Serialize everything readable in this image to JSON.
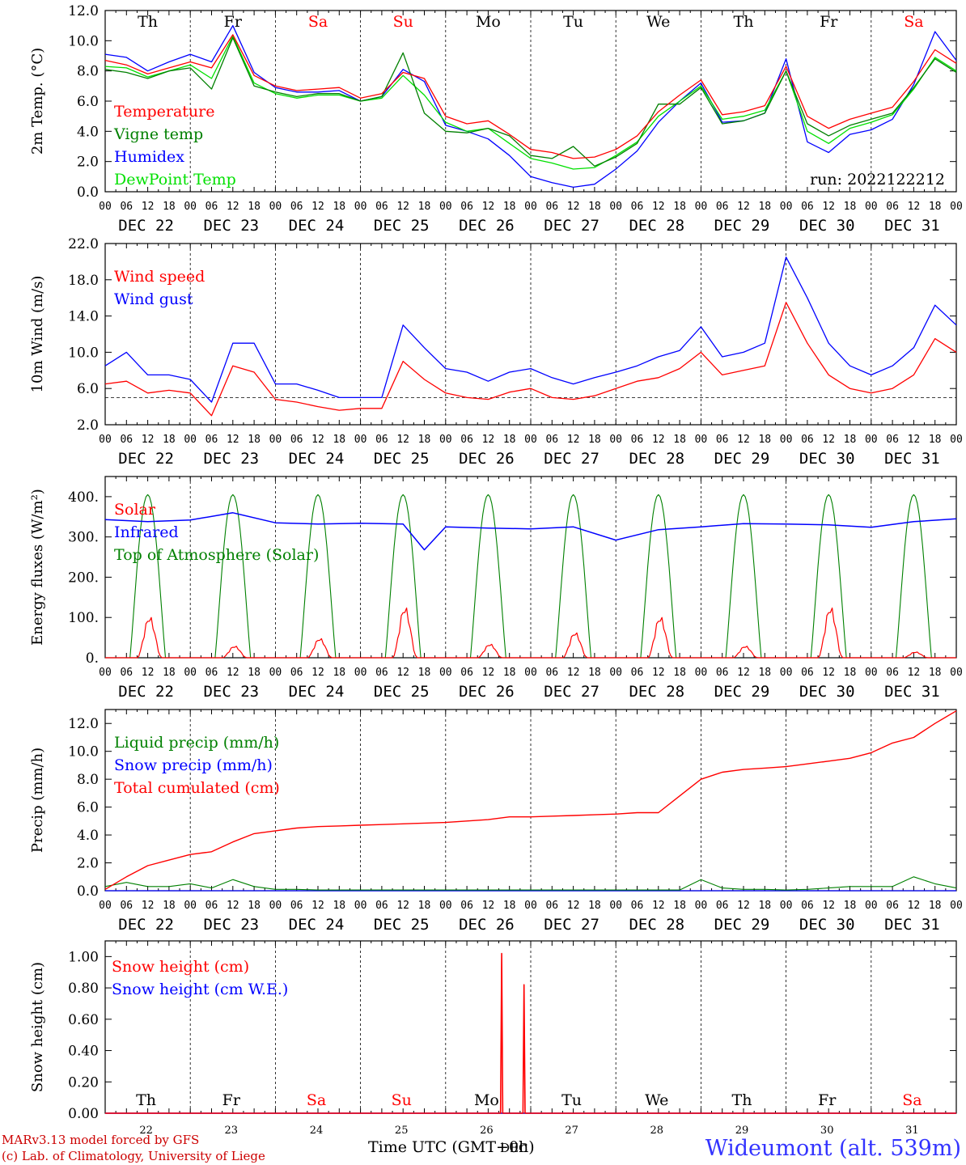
{
  "colors": {
    "temperature": "#ff0000",
    "vigne": "#008000",
    "humidex": "#0000ff",
    "dewpoint": "#00e000",
    "weekend": "#ff0000",
    "weekday": "#000000",
    "footer_station": "#3333ff",
    "footer_credit": "#cc0000"
  },
  "days": [
    "Th",
    "Fr",
    "Sa",
    "Su",
    "Mo",
    "Tu",
    "We",
    "Th",
    "Fr",
    "Sa"
  ],
  "weekend": [
    false,
    false,
    true,
    true,
    false,
    false,
    false,
    false,
    false,
    true
  ],
  "dates": [
    "DEC 22",
    "DEC 23",
    "DEC 24",
    "DEC 25",
    "DEC 26",
    "DEC 27",
    "DEC 28",
    "DEC 29",
    "DEC 30",
    "DEC 31"
  ],
  "hour_ticks": [
    "00",
    "06",
    "12",
    "18"
  ],
  "last_hour_tick": "00",
  "bottom_day_numbers": [
    "22",
    "23",
    "24",
    "25",
    "26",
    "27",
    "28",
    "29",
    "30",
    "31"
  ],
  "footer": {
    "xlabel": "Time UTC (GMT+0h)",
    "xlabel_overlay": "DEC",
    "model": "MARv3.13 model forced by GFS",
    "lab": "(c) Lab. of Climatology, University of Liege",
    "station": "Wideumont (alt. 539m)"
  },
  "chart_data": [
    {
      "type": "line",
      "ylabel": "2m Temp. (°C)",
      "ylim": [
        0,
        12
      ],
      "ytick_labels": [
        "0.0",
        "2.0",
        "4.0",
        "6.0",
        "8.0",
        "10.0",
        "12.0"
      ],
      "run_label": "run: 2022122212",
      "legend": [
        "Temperature",
        "Vigne temp",
        "Humidex",
        "DewPoint Temp"
      ],
      "x_hours": [
        0,
        6,
        12,
        18,
        24,
        30,
        36,
        42,
        48,
        54,
        60,
        66,
        72,
        78,
        84,
        90,
        96,
        102,
        108,
        114,
        120,
        126,
        132,
        138,
        144,
        150,
        156,
        162,
        168,
        174,
        180,
        186,
        192,
        198,
        204,
        210,
        216,
        222,
        228,
        234,
        240
      ],
      "series": [
        {
          "name": "Temperature",
          "values": [
            8.7,
            8.4,
            7.8,
            8.2,
            8.6,
            8.2,
            10.4,
            7.7,
            7.0,
            6.7,
            6.8,
            6.9,
            6.2,
            6.5,
            7.9,
            7.5,
            5.0,
            4.5,
            4.7,
            3.8,
            2.8,
            2.6,
            2.2,
            2.3,
            2.8,
            3.7,
            5.3,
            6.4,
            7.4,
            5.1,
            5.3,
            5.7,
            8.3,
            5.0,
            4.2,
            4.8,
            5.2,
            5.6,
            7.3,
            9.4,
            8.5
          ]
        },
        {
          "name": "Vigne temp",
          "values": [
            8.1,
            7.9,
            7.5,
            8.0,
            8.2,
            6.8,
            10.2,
            7.0,
            6.6,
            6.3,
            6.5,
            6.5,
            6.0,
            6.3,
            9.2,
            5.2,
            4.0,
            3.9,
            4.2,
            3.7,
            2.4,
            2.2,
            3.0,
            1.7,
            2.3,
            3.2,
            5.8,
            5.8,
            6.9,
            4.5,
            4.7,
            5.2,
            8.0,
            4.5,
            3.7,
            4.4,
            4.8,
            5.2,
            6.9,
            8.8,
            7.9
          ]
        },
        {
          "name": "Humidex",
          "values": [
            9.1,
            8.9,
            8.0,
            8.6,
            9.1,
            8.6,
            11.0,
            7.9,
            6.9,
            6.6,
            6.6,
            6.7,
            6.0,
            6.3,
            8.1,
            7.3,
            4.4,
            4.0,
            3.5,
            2.4,
            1.0,
            0.6,
            0.3,
            0.5,
            1.5,
            2.7,
            4.6,
            6.0,
            7.2,
            4.6,
            4.7,
            5.2,
            8.8,
            3.3,
            2.6,
            3.8,
            4.1,
            4.8,
            7.1,
            10.6,
            8.7
          ]
        },
        {
          "name": "DewPoint Temp",
          "values": [
            8.3,
            8.2,
            7.6,
            8.0,
            8.4,
            7.5,
            10.3,
            7.2,
            6.5,
            6.2,
            6.4,
            6.4,
            6.0,
            6.2,
            7.7,
            6.4,
            4.6,
            4.0,
            4.2,
            3.2,
            2.2,
            1.9,
            1.5,
            1.6,
            2.4,
            3.3,
            5.0,
            6.0,
            7.0,
            4.8,
            5.0,
            5.4,
            8.0,
            4.0,
            3.2,
            4.2,
            4.6,
            5.1,
            6.8,
            8.9,
            8.0
          ]
        }
      ]
    },
    {
      "type": "line",
      "ylabel": "10m Wind (m/s)",
      "ylim": [
        2,
        22
      ],
      "ytick_labels": [
        "2.0",
        "6.0",
        "10.0",
        "14.0",
        "18.0",
        "22.0"
      ],
      "reference_line": 5,
      "legend": [
        "Wind speed",
        "Wind gust"
      ],
      "x_hours": [
        0,
        6,
        12,
        18,
        24,
        30,
        36,
        42,
        48,
        54,
        60,
        66,
        72,
        78,
        84,
        90,
        96,
        102,
        108,
        114,
        120,
        126,
        132,
        138,
        144,
        150,
        156,
        162,
        168,
        174,
        180,
        186,
        192,
        198,
        204,
        210,
        216,
        222,
        228,
        234,
        240
      ],
      "series": [
        {
          "name": "Wind speed",
          "values": [
            6.5,
            6.8,
            5.5,
            5.8,
            5.5,
            3.0,
            8.5,
            7.8,
            4.8,
            4.5,
            4.0,
            3.6,
            3.8,
            3.8,
            9.0,
            7.0,
            5.5,
            5.0,
            4.8,
            5.6,
            6.0,
            5.0,
            4.8,
            5.2,
            6.0,
            6.8,
            7.2,
            8.2,
            10.0,
            7.5,
            8.0,
            8.5,
            15.5,
            11.0,
            7.5,
            6.0,
            5.5,
            6.0,
            7.5,
            11.5,
            10.0
          ]
        },
        {
          "name": "Wind gust",
          "values": [
            8.5,
            10.0,
            7.5,
            7.5,
            7.0,
            4.5,
            11.0,
            11.0,
            6.5,
            6.5,
            5.8,
            5.0,
            5.0,
            5.0,
            13.0,
            10.5,
            8.2,
            7.8,
            6.8,
            7.8,
            8.2,
            7.2,
            6.5,
            7.2,
            7.8,
            8.5,
            9.5,
            10.2,
            12.8,
            9.5,
            10.0,
            11.0,
            20.5,
            16.0,
            11.0,
            8.5,
            7.5,
            8.5,
            10.5,
            15.2,
            13.0
          ]
        }
      ]
    },
    {
      "type": "line",
      "ylabel": "Energy fluxes (W/m²)",
      "ylim": [
        0,
        450
      ],
      "ytick_labels": [
        "0.",
        "100.",
        "200.",
        "300.",
        "400."
      ],
      "legend": [
        "Solar",
        "Infrared",
        "Top of Atmosphere (Solar)"
      ],
      "solar_peaks": [
        105,
        30,
        50,
        130,
        35,
        65,
        105,
        30,
        130,
        15
      ],
      "toa_peak": 405,
      "daylight_hours": [
        7,
        17
      ],
      "infrared_x_hours": [
        0,
        12,
        24,
        36,
        48,
        60,
        72,
        84,
        90,
        96,
        108,
        120,
        132,
        144,
        156,
        168,
        180,
        192,
        204,
        216,
        228,
        240
      ],
      "series": [
        {
          "name": "Infrared",
          "values": [
            343,
            338,
            342,
            360,
            335,
            332,
            334,
            332,
            268,
            325,
            322,
            320,
            325,
            292,
            318,
            325,
            333,
            332,
            330,
            324,
            338,
            345
          ]
        }
      ]
    },
    {
      "type": "line",
      "ylabel": "Precip (mm/h)",
      "ylim": [
        0,
        13
      ],
      "ytick_labels": [
        "0.0",
        "2.0",
        "4.0",
        "6.0",
        "8.0",
        "10.0",
        "12.0"
      ],
      "legend": [
        "Liquid precip (mm/h)",
        "Snow precip (mm/h)",
        "Total cumulated (cm)"
      ],
      "x_hours": [
        0,
        6,
        12,
        18,
        24,
        30,
        36,
        42,
        48,
        54,
        60,
        66,
        72,
        78,
        84,
        90,
        96,
        102,
        108,
        114,
        120,
        126,
        132,
        138,
        144,
        150,
        156,
        162,
        168,
        174,
        180,
        186,
        192,
        198,
        204,
        210,
        216,
        222,
        228,
        234,
        240
      ],
      "series": [
        {
          "name": "Total cumulated (cm)",
          "values": [
            0.1,
            1.0,
            1.8,
            2.2,
            2.6,
            2.8,
            3.5,
            4.1,
            4.3,
            4.5,
            4.6,
            4.65,
            4.7,
            4.75,
            4.8,
            4.85,
            4.9,
            5.0,
            5.1,
            5.3,
            5.3,
            5.35,
            5.4,
            5.45,
            5.5,
            5.6,
            5.6,
            6.8,
            8.0,
            8.5,
            8.7,
            8.8,
            8.9,
            9.1,
            9.3,
            9.5,
            9.9,
            10.6,
            11.0,
            12.0,
            12.9
          ]
        },
        {
          "name": "Liquid precip (mm/h)",
          "values": [
            0.3,
            0.6,
            0.3,
            0.3,
            0.5,
            0.2,
            0.8,
            0.3,
            0.1,
            0.1,
            0.05,
            0.05,
            0.05,
            0.05,
            0.05,
            0.05,
            0.05,
            0.05,
            0.05,
            0.05,
            0.05,
            0.05,
            0.05,
            0.05,
            0.05,
            0.05,
            0.05,
            0.05,
            0.8,
            0.2,
            0.1,
            0.1,
            0.05,
            0.1,
            0.2,
            0.3,
            0.3,
            0.3,
            1.0,
            0.5,
            0.2
          ]
        },
        {
          "name": "Snow precip (mm/h)",
          "values": [
            0.0,
            0.0,
            0.0,
            0.0,
            0.0,
            0.0,
            0.0,
            0.0,
            0.0,
            0.0,
            0.0,
            0.0,
            0.0,
            0.0,
            0.0,
            0.0,
            0.0,
            0.0,
            0.0,
            0.0,
            0.0,
            0.0,
            0.0,
            0.0,
            0.0,
            0.0,
            0.0,
            0.0,
            0.0,
            0.0,
            0.0,
            0.0,
            0.0,
            0.0,
            0.0,
            0.0,
            0.0,
            0.0,
            0.0,
            0.0,
            0.0
          ]
        }
      ]
    },
    {
      "type": "line",
      "ylabel": "Snow height (cm)",
      "ylim": [
        0,
        1.1
      ],
      "ytick_labels": [
        "0.00",
        "0.20",
        "0.40",
        "0.60",
        "0.80",
        "1.00"
      ],
      "legend": [
        "Snow height (cm)",
        "Snow height (cm W.E.)"
      ],
      "series": [
        {
          "name": "Snow height (cm)",
          "points": [
            [
              0,
              0
            ],
            [
              111.5,
              0
            ],
            [
              111.8,
              1.02
            ],
            [
              112.1,
              0
            ],
            [
              117.8,
              0
            ],
            [
              118.1,
              0.82
            ],
            [
              118.4,
              0
            ],
            [
              240,
              0
            ]
          ]
        },
        {
          "name": "Snow height (cm W.E.)",
          "points": [
            [
              0,
              0
            ],
            [
              240,
              0
            ]
          ]
        }
      ]
    }
  ]
}
